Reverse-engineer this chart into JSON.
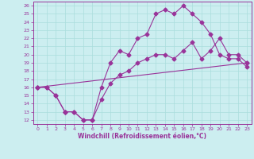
{
  "xlabel": "Windchill (Refroidissement éolien,°C)",
  "bg_color": "#cceef0",
  "line_color": "#993399",
  "spine_color": "#993399",
  "grid_color": "#aadddd",
  "xlim": [
    -0.5,
    23.5
  ],
  "ylim": [
    11.5,
    26.5
  ],
  "xticks": [
    0,
    1,
    2,
    3,
    4,
    5,
    6,
    7,
    8,
    9,
    10,
    11,
    12,
    13,
    14,
    15,
    16,
    17,
    18,
    19,
    20,
    21,
    22,
    23
  ],
  "yticks": [
    12,
    13,
    14,
    15,
    16,
    17,
    18,
    19,
    20,
    21,
    22,
    23,
    24,
    25,
    26
  ],
  "line1_x": [
    0,
    1,
    2,
    3,
    3,
    4,
    5,
    6,
    7,
    8,
    9,
    10,
    11,
    12,
    13,
    14,
    15,
    16,
    17,
    18,
    19,
    20,
    21,
    22,
    23
  ],
  "line1_y": [
    16,
    16,
    15,
    13,
    13,
    13,
    12,
    12,
    14.5,
    16.5,
    17.5,
    18,
    19,
    19.5,
    20,
    20,
    19.5,
    20.5,
    21.5,
    19.5,
    20.5,
    22,
    20,
    20,
    19
  ],
  "line2_x": [
    0,
    1,
    2,
    3,
    4,
    5,
    6,
    7,
    8,
    9,
    10,
    11,
    12,
    13,
    14,
    15,
    16,
    17,
    18,
    19,
    20,
    21,
    22,
    23
  ],
  "line2_y": [
    16,
    16,
    15,
    13,
    13,
    12,
    12,
    16,
    19,
    20.5,
    20,
    22,
    22.5,
    25,
    25.5,
    25,
    26,
    25,
    24,
    22.5,
    20,
    19.5,
    19.5,
    18.5
  ],
  "line3_x": [
    0,
    23
  ],
  "line3_y": [
    16,
    19
  ]
}
